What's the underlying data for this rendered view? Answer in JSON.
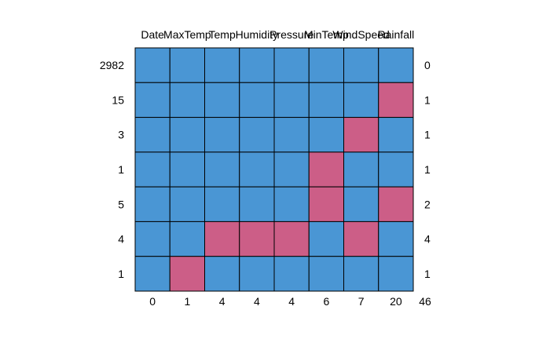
{
  "chart_data": {
    "type": "heatmap",
    "title": "",
    "columns": [
      "Date",
      "MaxTemp",
      "Temp",
      "Humidity",
      "Pressure",
      "MinTemp",
      "WindSpeed",
      "Rainfall"
    ],
    "row_counts": [
      "2982",
      "15",
      "3",
      "1",
      "5",
      "4",
      "1"
    ],
    "row_missing_totals": [
      "0",
      "1",
      "1",
      "1",
      "2",
      "4",
      "1"
    ],
    "column_missing_totals": [
      "0",
      "1",
      "4",
      "4",
      "4",
      "6",
      "7",
      "20"
    ],
    "grand_total": "46",
    "pattern": [
      [
        1,
        1,
        1,
        1,
        1,
        1,
        1,
        1
      ],
      [
        1,
        1,
        1,
        1,
        1,
        1,
        1,
        0
      ],
      [
        1,
        1,
        1,
        1,
        1,
        1,
        0,
        1
      ],
      [
        1,
        1,
        1,
        1,
        1,
        0,
        1,
        1
      ],
      [
        1,
        1,
        1,
        1,
        1,
        0,
        1,
        0
      ],
      [
        1,
        1,
        0,
        0,
        0,
        1,
        0,
        1
      ],
      [
        1,
        0,
        1,
        1,
        1,
        1,
        1,
        1
      ]
    ],
    "pattern_legend": {
      "1": "observed",
      "0": "missing"
    },
    "colors": {
      "observed": "#4a96d4",
      "missing": "#cc5e87",
      "border": "#000000"
    }
  }
}
